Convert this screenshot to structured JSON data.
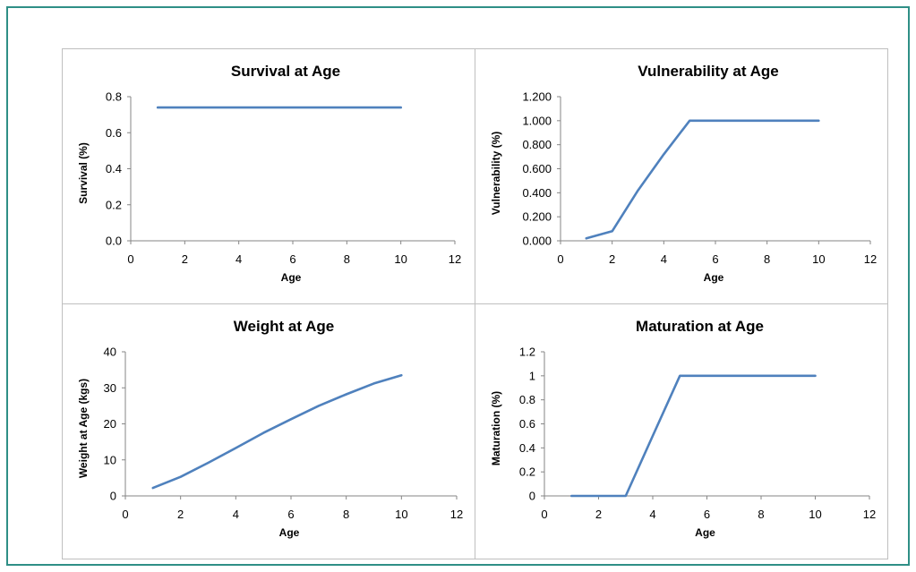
{
  "colors": {
    "frame_border": "#2f8f86",
    "panel_border": "#bfbfbf",
    "axis_line": "#868686",
    "series_line": "#4f81bd"
  },
  "chart_data": [
    {
      "type": "line",
      "title": "Survival at Age",
      "xlabel": "Age",
      "ylabel": "Survival (%)",
      "xlim": [
        0,
        12
      ],
      "ylim": [
        0,
        0.8
      ],
      "xticks": [
        "0",
        "2",
        "4",
        "6",
        "8",
        "10",
        "12"
      ],
      "yticks": [
        "0.0",
        "0.2",
        "0.4",
        "0.6",
        "0.8"
      ],
      "grid": false,
      "legend": "none",
      "series": [
        {
          "x": [
            1,
            2,
            3,
            4,
            5,
            6,
            7,
            8,
            9,
            10
          ],
          "y": [
            0.74,
            0.74,
            0.74,
            0.74,
            0.74,
            0.74,
            0.74,
            0.74,
            0.74,
            0.74
          ]
        }
      ]
    },
    {
      "type": "line",
      "title": "Vulnerability at Age",
      "xlabel": "Age",
      "ylabel": "Vulnerability (%)",
      "xlim": [
        0,
        12
      ],
      "ylim": [
        0,
        1.2
      ],
      "xticks": [
        "0",
        "2",
        "4",
        "6",
        "8",
        "10",
        "12"
      ],
      "yticks": [
        "0.000",
        "0.200",
        "0.400",
        "0.600",
        "0.800",
        "1.000",
        "1.200"
      ],
      "grid": false,
      "legend": "none",
      "series": [
        {
          "x": [
            1,
            2,
            3,
            4,
            5,
            6,
            7,
            8,
            9,
            10
          ],
          "y": [
            0.02,
            0.08,
            0.42,
            0.72,
            1.0,
            1.0,
            1.0,
            1.0,
            1.0,
            1.0
          ]
        }
      ]
    },
    {
      "type": "line",
      "title": "Weight at Age",
      "xlabel": "Age",
      "ylabel": "Weight at Age (kgs)",
      "xlim": [
        0,
        12
      ],
      "ylim": [
        0,
        40
      ],
      "xticks": [
        "0",
        "2",
        "4",
        "6",
        "8",
        "10",
        "12"
      ],
      "yticks": [
        "0",
        "10",
        "20",
        "30",
        "40"
      ],
      "grid": false,
      "legend": "none",
      "series": [
        {
          "x": [
            1,
            2,
            3,
            4,
            5,
            6,
            7,
            8,
            9,
            10
          ],
          "y": [
            2.2,
            5.3,
            9.2,
            13.3,
            17.5,
            21.3,
            25.0,
            28.2,
            31.2,
            33.5
          ]
        }
      ]
    },
    {
      "type": "line",
      "title": "Maturation at Age",
      "xlabel": "Age",
      "ylabel": "Maturation (%)",
      "xlim": [
        0,
        12
      ],
      "ylim": [
        0,
        1.2
      ],
      "xticks": [
        "0",
        "2",
        "4",
        "6",
        "8",
        "10",
        "12"
      ],
      "yticks": [
        "0",
        "0.2",
        "0.4",
        "0.6",
        "0.8",
        "1",
        "1.2"
      ],
      "grid": false,
      "legend": "none",
      "series": [
        {
          "x": [
            1,
            2,
            3,
            4,
            5,
            6,
            7,
            8,
            9,
            10
          ],
          "y": [
            0,
            0,
            0,
            0.5,
            1,
            1,
            1,
            1,
            1,
            1
          ]
        }
      ]
    }
  ]
}
